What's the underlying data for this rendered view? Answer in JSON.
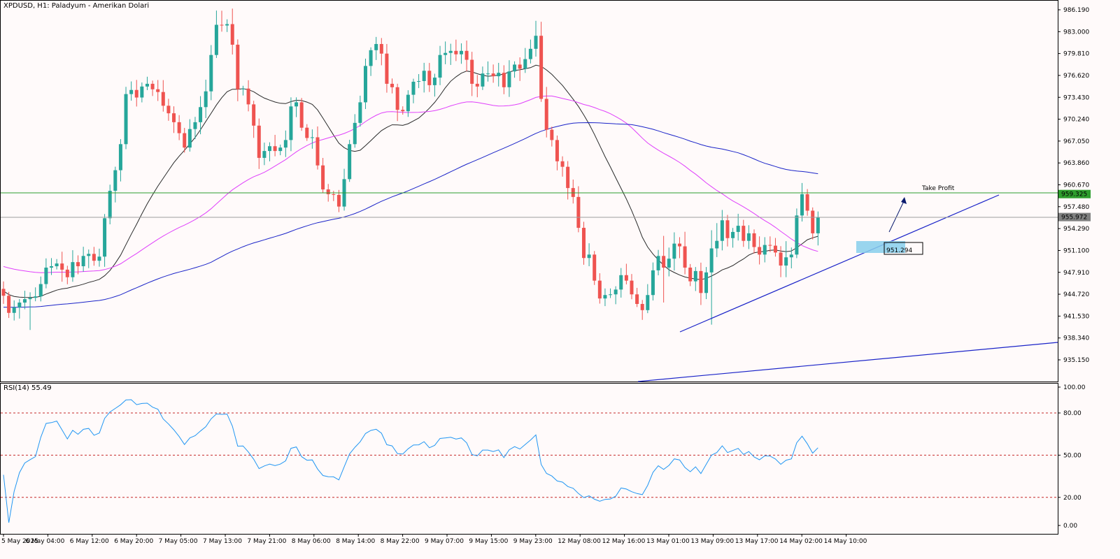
{
  "header": {
    "title": "XPDUSD, H1:  Paladyum - Amerikan Dolari"
  },
  "rsi": {
    "title": "RSI(14) 55.49",
    "levels": [
      "100.00",
      "80.00",
      "50.00",
      "20.00",
      "0.00"
    ]
  },
  "annotations": {
    "take_profit": "Take Profit",
    "entry_label": "951.294"
  },
  "colors": {
    "bull": "#26a69a",
    "bear": "#ef5350",
    "ma_short": "#2a2a2a",
    "ma_mid": "#e040fb",
    "ma_long": "#1a23c8",
    "tp_line": "#2e9e2e",
    "rsi_line": "#2196f3",
    "rsi_levels": "#c62828"
  },
  "chart_data": {
    "type": "candlestick",
    "symbol": "XPDUSD",
    "timeframe": "H1",
    "ylim": [
      933.0,
      987.5
    ],
    "y_ticks": [
      "986.190",
      "983.000",
      "979.810",
      "976.620",
      "973.430",
      "970.240",
      "967.050",
      "963.860",
      "960.670",
      "957.480",
      "954.290",
      "951.100",
      "947.910",
      "944.720",
      "941.530",
      "938.340",
      "935.150"
    ],
    "x_labels": [
      "5 May 2025",
      "6 May 04:00",
      "6 May 12:00",
      "6 May 20:00",
      "7 May 05:00",
      "7 May 13:00",
      "7 May 21:00",
      "8 May 06:00",
      "8 May 14:00",
      "8 May 22:00",
      "9 May 07:00",
      "9 May 15:00",
      "9 May 23:00",
      "12 May 08:00",
      "12 May 16:00",
      "13 May 01:00",
      "13 May 09:00",
      "13 May 17:00",
      "14 May 02:00",
      "14 May 10:00"
    ],
    "price_labels": [
      {
        "value": "959.325",
        "color": "#2e9e2e"
      },
      {
        "value": "955.972",
        "color": "#808080"
      }
    ],
    "close_series": [
      944.5,
      942,
      942.8,
      943.5,
      944,
      944.2,
      944.4,
      946.2,
      948.6,
      948.8,
      949.2,
      948.3,
      947.2,
      949.4,
      948.8,
      950.3,
      950.6,
      949.6,
      950.2,
      955.8,
      959.8,
      962.8,
      966.6,
      973.9,
      974.5,
      973.4,
      975,
      975.4,
      974.6,
      974.2,
      972.2,
      971.1,
      969.8,
      968.2,
      966.1,
      968.8,
      969.8,
      972,
      974.3,
      979.6,
      984,
      983.9,
      984.1,
      981.1,
      974.6,
      974.7,
      972.4,
      969.3,
      964.6,
      965.6,
      966.3,
      965.6,
      966.1,
      967.2,
      972.1,
      972.7,
      969,
      967.5,
      967.6,
      963.5,
      960,
      959.3,
      959.2,
      957.5,
      961.5,
      966.6,
      969.7,
      972.7,
      978,
      980.3,
      981.2,
      979.8,
      975.4,
      974.9,
      971.6,
      971.4,
      973.8,
      975.7,
      975.8,
      977.3,
      975.2,
      976.3,
      979.6,
      979.9,
      980.2,
      979.7,
      980.2,
      978.9,
      975.4,
      975,
      976.9,
      976.9,
      976.5,
      977,
      974.9,
      977.2,
      978.2,
      977.6,
      979,
      980.5,
      982.4,
      973.2,
      968.7,
      967.2,
      964.1,
      963.3,
      960.2,
      958.9,
      954.4,
      950,
      950.5,
      946.7,
      944.1,
      944.6,
      944.7,
      945.4,
      947.5,
      946.7,
      944.7,
      943.3,
      942.4,
      944.6,
      948.2,
      950.3,
      948.6,
      949.9,
      952.1,
      951.7,
      948.6,
      946.6,
      948.1,
      944.9,
      947.9,
      951.4,
      952.5,
      955.5,
      952.9,
      953.8,
      954.7,
      952.5,
      953.6,
      951.6,
      950.5,
      951.9,
      951.8,
      950.8,
      948.9,
      950.1,
      950.5,
      956.2,
      959.3,
      956.9,
      953.6,
      955.9
    ],
    "series": [
      {
        "name": "",
        "kind": "moving_average"
      },
      {
        "name": "",
        "kind": "moving_average"
      },
      {
        "name": "",
        "kind": "moving_average"
      }
    ],
    "rsi": {
      "ylim": [
        0,
        100
      ],
      "levels": [
        20,
        50,
        80
      ],
      "last": 55.49
    }
  }
}
